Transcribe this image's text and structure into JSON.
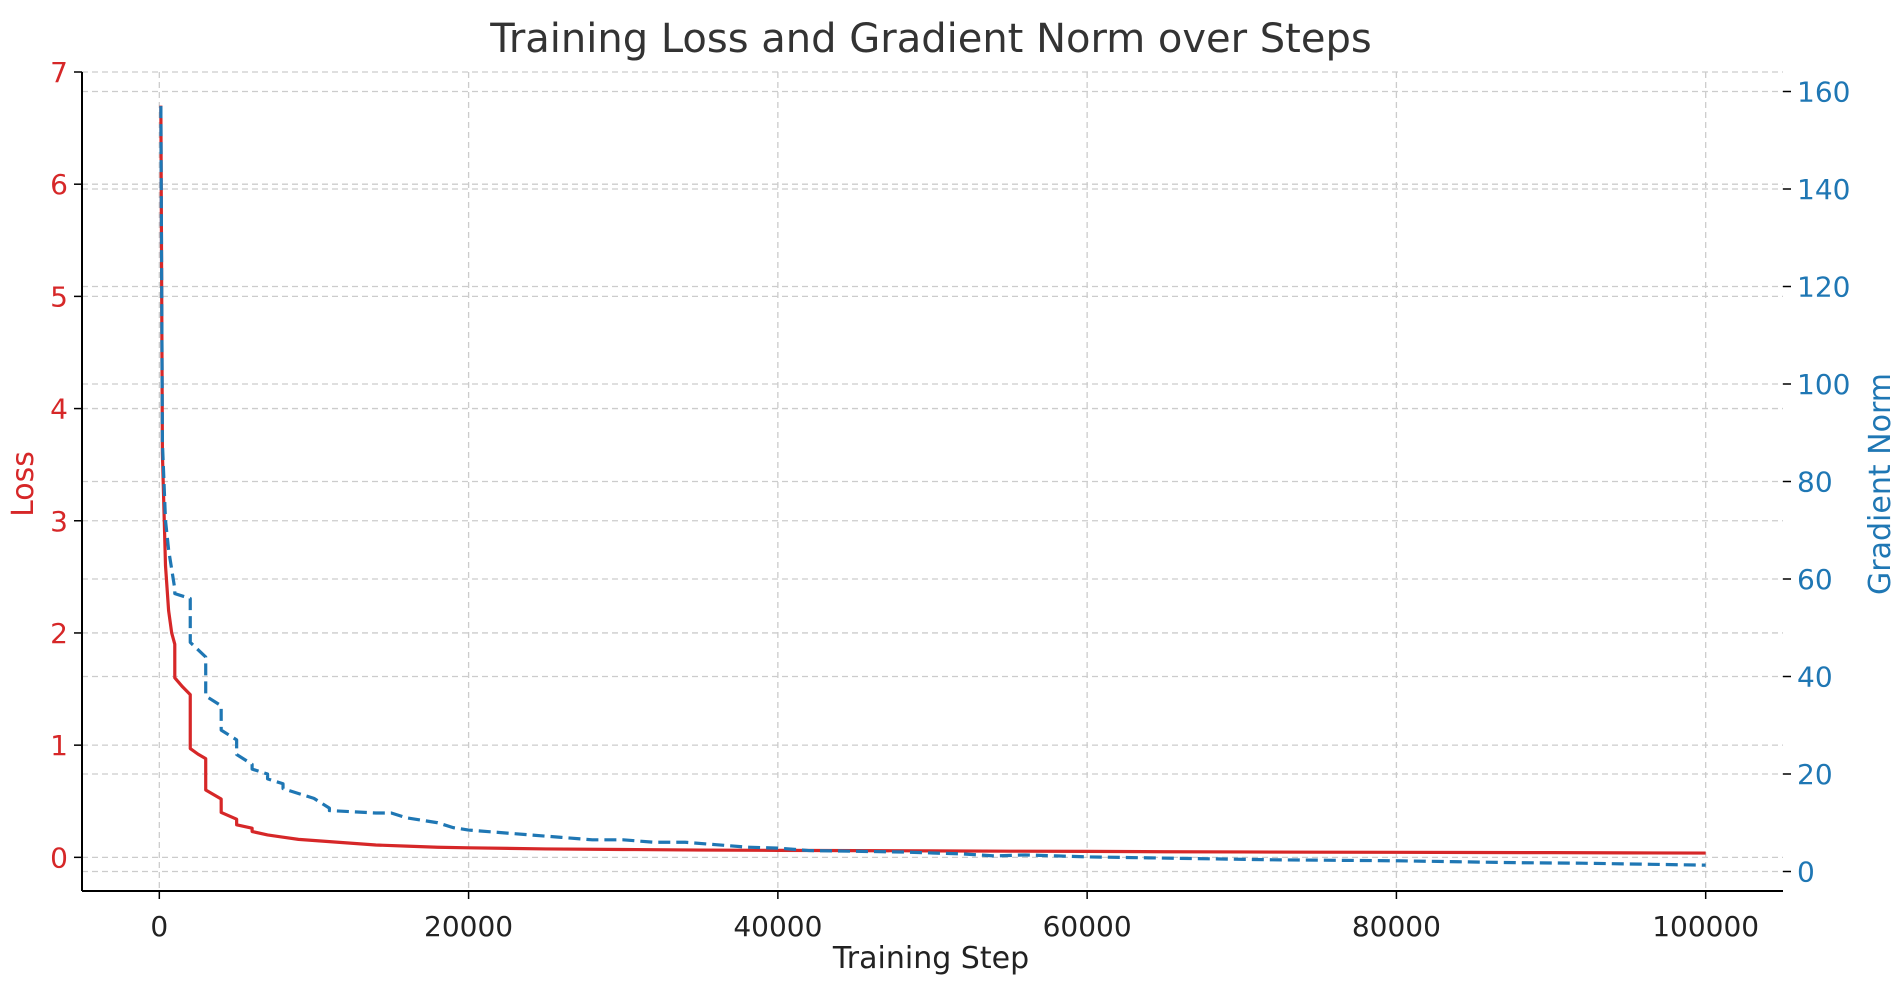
{
  "chart_data": {
    "type": "line",
    "title": "Training Loss and Gradient Norm over Steps",
    "xlabel": "Training Step",
    "ylabel_left": "Loss",
    "ylabel_right": "Gradient Norm",
    "xlim": [
      -5000,
      105000
    ],
    "ylim_left": [
      -0.3,
      7.0
    ],
    "ylim_right": [
      -4,
      164
    ],
    "x_ticks": [
      0,
      20000,
      40000,
      60000,
      80000,
      100000
    ],
    "x_tick_labels": [
      "0",
      "20000",
      "40000",
      "60000",
      "80000",
      "100000"
    ],
    "y_left_ticks": [
      0,
      1,
      2,
      3,
      4,
      5,
      6,
      7
    ],
    "y_left_tick_labels": [
      "0",
      "1",
      "2",
      "3",
      "4",
      "5",
      "6",
      "7"
    ],
    "y_right_ticks": [
      0,
      20,
      40,
      60,
      80,
      100,
      120,
      140,
      160
    ],
    "y_right_tick_labels": [
      "0",
      "20",
      "40",
      "60",
      "80",
      "100",
      "120",
      "140",
      "160"
    ],
    "grid": true,
    "colors": {
      "loss": "#d62728",
      "grad_norm": "#1f77b4",
      "text": "#333333",
      "grid": "#cccccc",
      "axis": "#000000"
    },
    "series": [
      {
        "axis": "left",
        "style": "solid",
        "x": [
          100,
          200,
          400,
          600,
          800,
          1000,
          1001,
          1500,
          2000,
          2001,
          2500,
          3000,
          3001,
          3500,
          4000,
          4001,
          4500,
          5000,
          5001,
          6000,
          6001,
          7000,
          8000,
          9000,
          10000,
          12000,
          14000,
          16000,
          18000,
          20000,
          25000,
          30000,
          35000,
          40000,
          45000,
          50000,
          55000,
          60000,
          65000,
          70000,
          75000,
          80000,
          85000,
          90000,
          95000,
          100000
        ],
        "values": [
          6.7,
          3.6,
          2.6,
          2.2,
          2.0,
          1.9,
          1.6,
          1.52,
          1.45,
          0.97,
          0.92,
          0.88,
          0.6,
          0.56,
          0.52,
          0.4,
          0.37,
          0.34,
          0.29,
          0.26,
          0.23,
          0.2,
          0.18,
          0.16,
          0.15,
          0.13,
          0.11,
          0.1,
          0.09,
          0.085,
          0.075,
          0.07,
          0.065,
          0.062,
          0.06,
          0.058,
          0.055,
          0.053,
          0.05,
          0.048,
          0.046,
          0.045,
          0.043,
          0.042,
          0.04,
          0.038
        ]
      },
      {
        "axis": "right",
        "style": "dashed",
        "x": [
          100,
          200,
          400,
          600,
          800,
          1000,
          1001,
          2000,
          2001,
          3000,
          3001,
          4000,
          4001,
          5000,
          5001,
          6000,
          6001,
          7000,
          7001,
          8000,
          8001,
          10000,
          11000,
          11001,
          14000,
          15000,
          16000,
          18000,
          19000,
          20000,
          22000,
          24000,
          26000,
          28000,
          30000,
          32000,
          34000,
          36000,
          38000,
          40000,
          42000,
          44000,
          46000,
          48000,
          50000,
          52000,
          54000,
          56000,
          58000,
          60000,
          64000,
          68000,
          72000,
          76000,
          80000,
          84000,
          88000,
          92000,
          96000,
          100000
        ],
        "values": [
          157,
          88,
          72,
          66,
          62,
          58,
          57,
          56,
          47,
          44,
          36,
          34,
          29,
          27,
          24,
          22,
          21,
          20,
          19,
          18,
          17,
          15,
          13,
          12.5,
          12,
          12,
          11,
          10,
          9,
          8.5,
          8,
          7.5,
          7,
          6.5,
          6.5,
          6,
          6,
          5.5,
          5,
          4.8,
          4.3,
          4.2,
          4.1,
          4,
          3.8,
          3.6,
          3.2,
          3.4,
          3.2,
          3,
          2.8,
          2.6,
          2.4,
          2.3,
          2.2,
          2.0,
          1.8,
          1.7,
          1.5,
          1.3
        ]
      }
    ]
  }
}
